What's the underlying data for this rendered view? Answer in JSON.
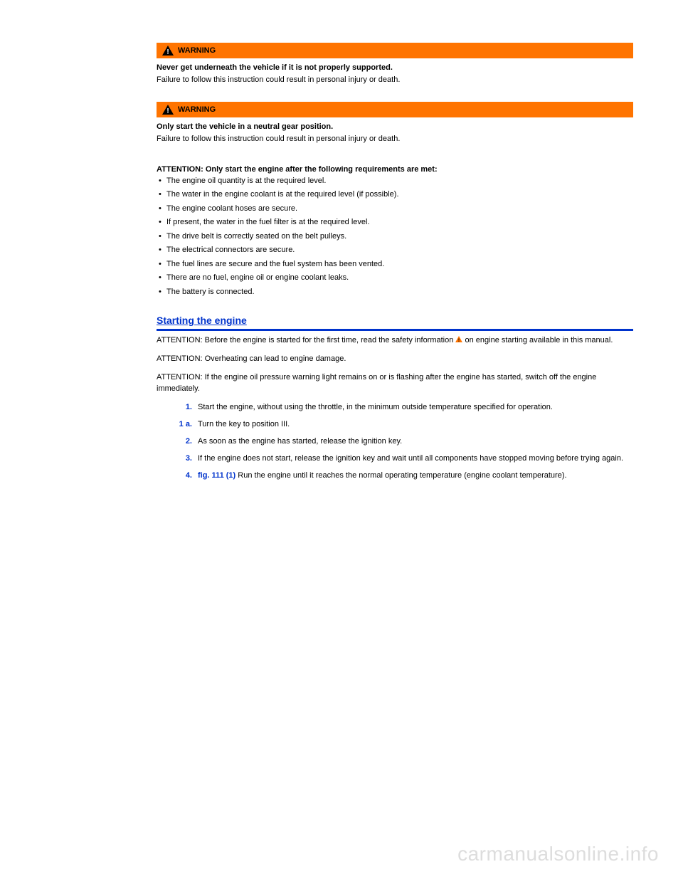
{
  "warnings": [
    {
      "label": "WARNING",
      "icon_fg": "#000000",
      "icon_bg": "#ffffff",
      "header_bg": "#ff7400",
      "lines": [
        {
          "text": "Never get underneath the vehicle if it is not properly supported.",
          "bold": true
        },
        {
          "text": "Failure to follow this instruction could result in personal injury or death.",
          "bold": false
        }
      ]
    },
    {
      "label": "WARNING",
      "icon_fg": "#000000",
      "icon_bg": "#ffffff",
      "header_bg": "#ff7400",
      "lines": [
        {
          "text": "Only start the vehicle in a neutral gear position.",
          "bold": true
        },
        {
          "text": "Failure to follow this instruction could result in personal injury or death.",
          "bold": false
        }
      ]
    }
  ],
  "attention": {
    "header": "ATTENTION: Only start the engine after the following requirements are met:",
    "items": [
      "The engine oil quantity is at the required level.",
      "The water in the engine coolant is at the required level (if possible).",
      "The engine coolant hoses are secure.",
      "If present, the water in the fuel filter is at the required level.",
      "The drive belt is correctly seated on the belt pulleys.",
      "The electrical connectors are secure.",
      "The fuel lines are secure and the fuel system has been vented.",
      "There are no fuel, engine oil or engine coolant leaks.",
      "The battery is connected."
    ]
  },
  "section_title": "Starting the engine",
  "body_paragraphs": [
    "ATTENTION: Before the engine is started for the first time, read the safety information on engine starting available in this manual.",
    "ATTENTION: Overheating can lead to engine damage.",
    "ATTENTION: If the engine oil pressure warning light remains on or is flashing after the engine has started, switch off the engine immediately."
  ],
  "inline_icon_color": "#ff7400",
  "steps": [
    {
      "num": "1.",
      "body": "Start the engine, without using the throttle, in the minimum outside temperature specified for operation."
    },
    {
      "num": "1 a.",
      "body": "Turn the key to position III."
    },
    {
      "num": "2.",
      "body": "As soon as the engine has started, release the ignition key."
    },
    {
      "num": "3.",
      "body": "If the engine does not start, release the ignition key and wait until all components have stopped moving before trying again."
    }
  ],
  "fig_ref": "fig. 111 (1)",
  "fig_text_after": " Run the engine until it reaches the normal operating temperature (engine coolant temperature).",
  "fig_step_num": "4.",
  "watermark": "carmanualsonline.info",
  "colors": {
    "link_blue": "#0033cc",
    "warning_orange": "#ff7400",
    "watermark_gray": "#dddddd"
  }
}
